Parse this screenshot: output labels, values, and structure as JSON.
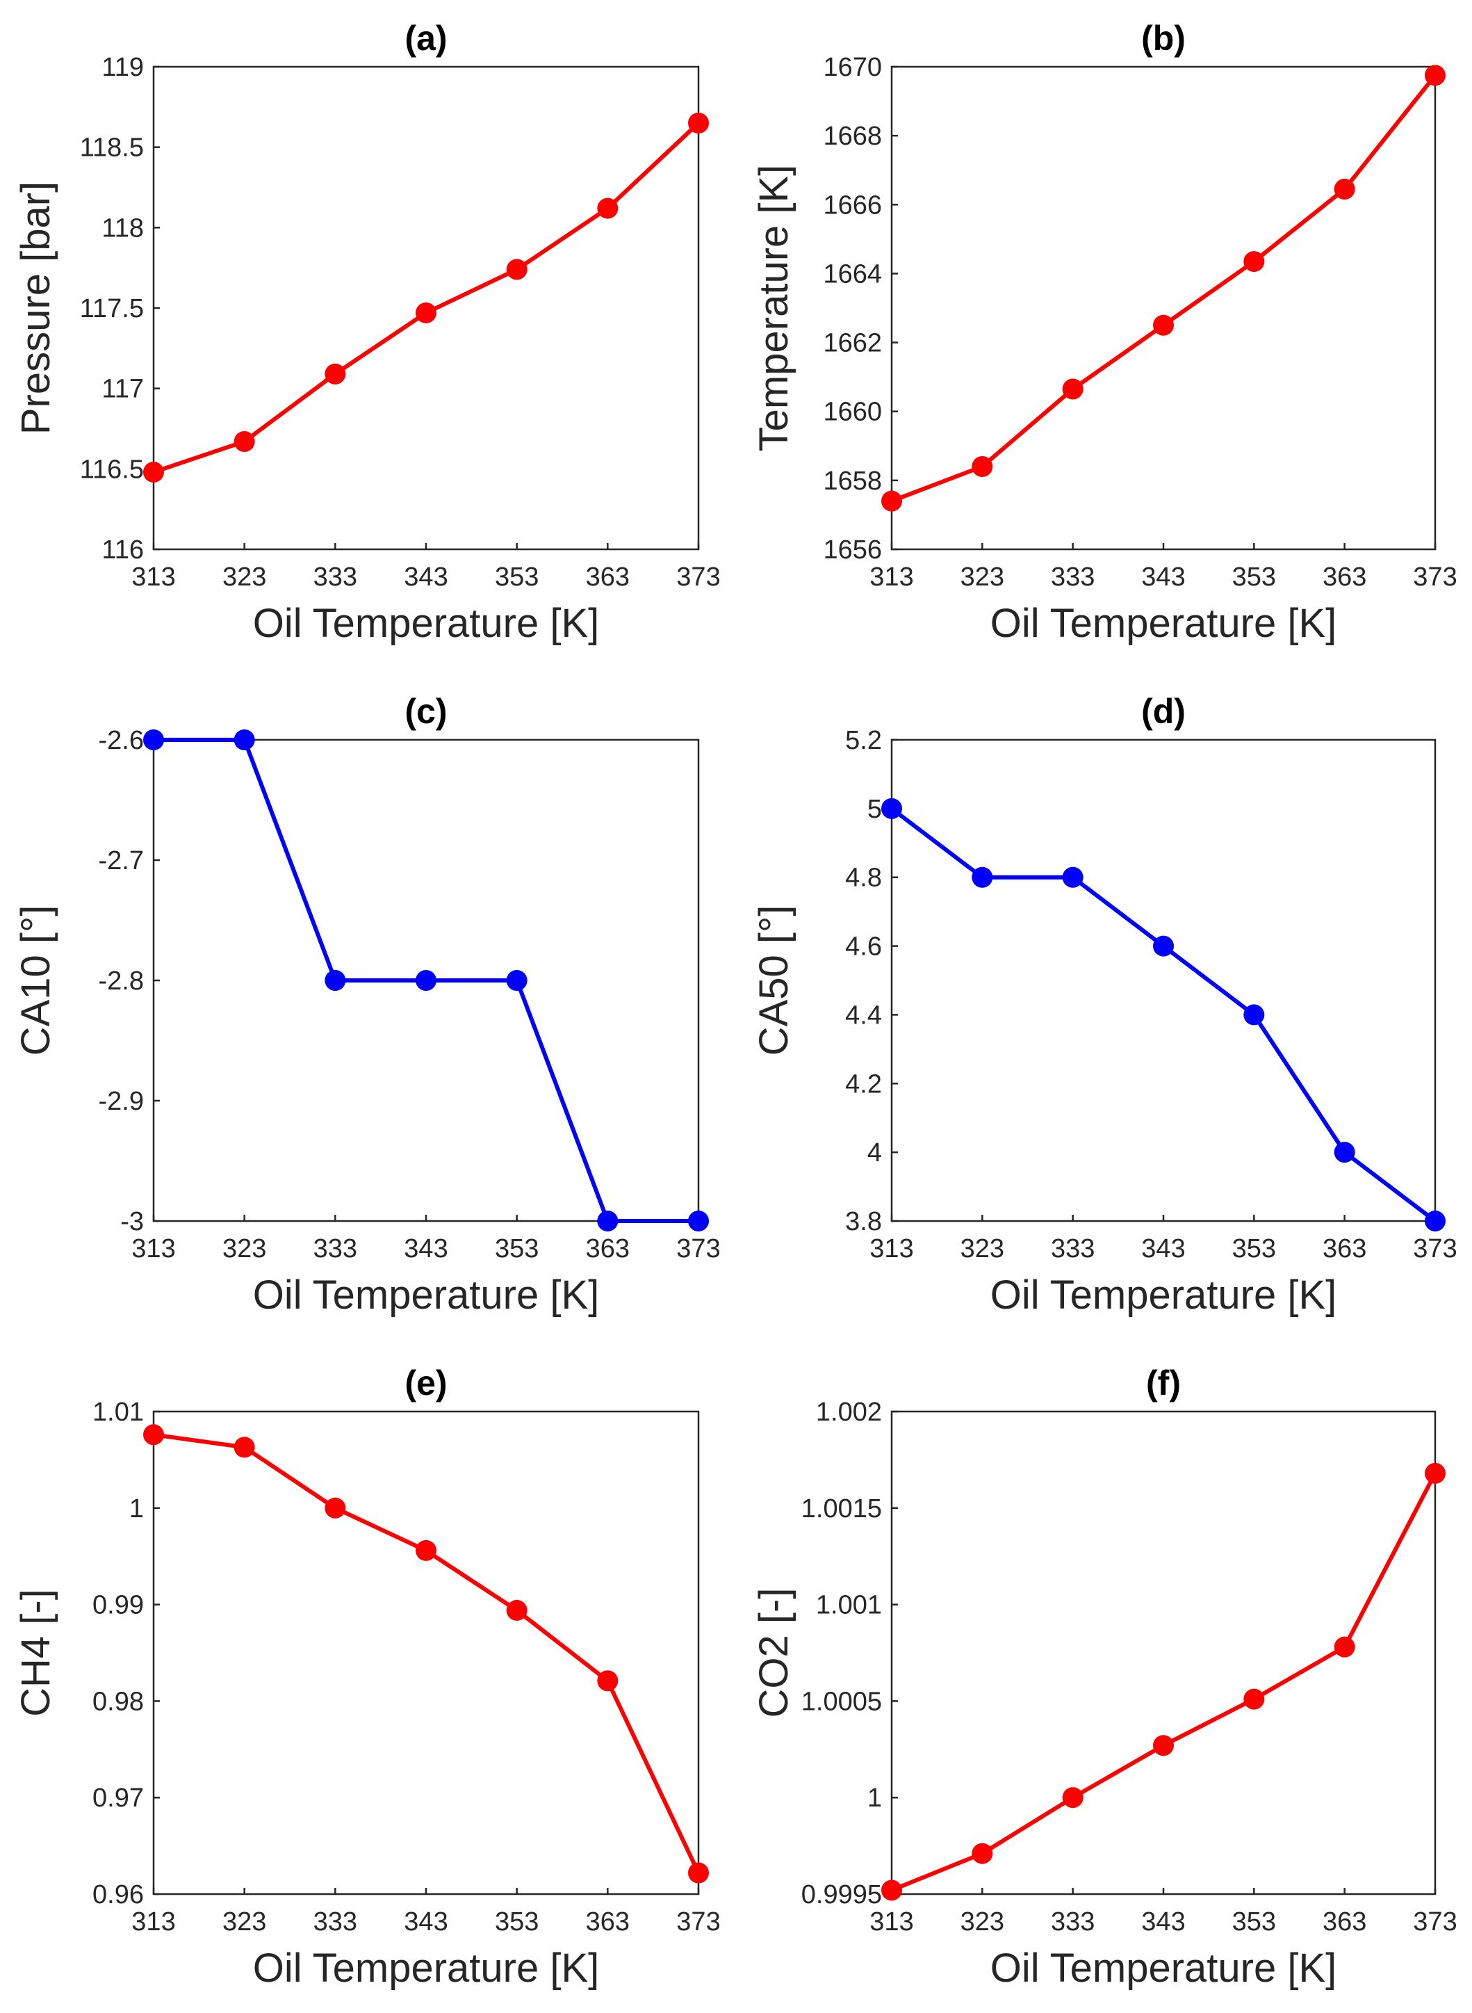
{
  "chart_data": [
    {
      "type": "line",
      "title": "(a)",
      "xlabel": "Oil Temperature [K]",
      "ylabel": "Pressure [bar]",
      "x": [
        313,
        323,
        333,
        343,
        353,
        363,
        373
      ],
      "values": [
        116.48,
        116.67,
        117.09,
        117.47,
        117.74,
        118.12,
        118.65
      ],
      "xlim": [
        313,
        373
      ],
      "ylim": [
        116,
        119
      ],
      "xticks": [
        313,
        323,
        333,
        343,
        353,
        363,
        373
      ],
      "xtick_labels": [
        "313",
        "323",
        "333",
        "343",
        "353",
        "363",
        "373"
      ],
      "yticks": [
        116,
        116.5,
        117,
        117.5,
        118,
        118.5,
        119
      ],
      "ytick_labels": [
        "116",
        "116.5",
        "117",
        "117.5",
        "118",
        "118.5",
        "119"
      ],
      "color": "#ff0000",
      "grid": true
    },
    {
      "type": "line",
      "title": "(b)",
      "xlabel": "Oil Temperature [K]",
      "ylabel": "Temperature [K]",
      "x": [
        313,
        323,
        333,
        343,
        353,
        363,
        373
      ],
      "values": [
        1657.4,
        1658.4,
        1660.65,
        1662.5,
        1664.35,
        1666.45,
        1669.75
      ],
      "xlim": [
        313,
        373
      ],
      "ylim": [
        1656,
        1670
      ],
      "xticks": [
        313,
        323,
        333,
        343,
        353,
        363,
        373
      ],
      "xtick_labels": [
        "313",
        "323",
        "333",
        "343",
        "353",
        "363",
        "373"
      ],
      "yticks": [
        1656,
        1658,
        1660,
        1662,
        1664,
        1666,
        1668,
        1670
      ],
      "ytick_labels": [
        "1656",
        "1658",
        "1660",
        "1662",
        "1664",
        "1666",
        "1668",
        "1670"
      ],
      "color": "#ff0000",
      "grid": true
    },
    {
      "type": "line",
      "title": "(c)",
      "xlabel": "Oil Temperature [K]",
      "ylabel": "CA10 [°]",
      "x": [
        313,
        323,
        333,
        343,
        353,
        363,
        373
      ],
      "values": [
        -2.6,
        -2.6,
        -2.8,
        -2.8,
        -2.8,
        -3.0,
        -3.0
      ],
      "xlim": [
        313,
        373
      ],
      "ylim": [
        -3.0,
        -2.6
      ],
      "xticks": [
        313,
        323,
        333,
        343,
        353,
        363,
        373
      ],
      "xtick_labels": [
        "313",
        "323",
        "333",
        "343",
        "353",
        "363",
        "373"
      ],
      "yticks": [
        -3.0,
        -2.9,
        -2.8,
        -2.7,
        -2.6
      ],
      "ytick_labels": [
        "-3",
        "-2.9",
        "-2.8",
        "-2.7",
        "-2.6"
      ],
      "color": "#0000ff",
      "grid": true
    },
    {
      "type": "line",
      "title": "(d)",
      "xlabel": "Oil Temperature [K]",
      "ylabel": "CA50 [°]",
      "x": [
        313,
        323,
        333,
        343,
        353,
        363,
        373
      ],
      "values": [
        5.0,
        4.8,
        4.8,
        4.6,
        4.4,
        4.0,
        3.8
      ],
      "xlim": [
        313,
        373
      ],
      "ylim": [
        3.8,
        5.2
      ],
      "xticks": [
        313,
        323,
        333,
        343,
        353,
        363,
        373
      ],
      "xtick_labels": [
        "313",
        "323",
        "333",
        "343",
        "353",
        "363",
        "373"
      ],
      "yticks": [
        3.8,
        4.0,
        4.2,
        4.4,
        4.6,
        4.8,
        5.0,
        5.2
      ],
      "ytick_labels": [
        "3.8",
        "4",
        "4.2",
        "4.4",
        "4.6",
        "4.8",
        "5",
        "5.2"
      ],
      "color": "#0000ff",
      "grid": true
    },
    {
      "type": "line",
      "title": "(e)",
      "xlabel": "Oil Temperature [K]",
      "ylabel": "CH4 [-]",
      "x": [
        313,
        323,
        333,
        343,
        353,
        363,
        373
      ],
      "values": [
        1.0076,
        1.0063,
        1.0,
        0.9956,
        0.9894,
        0.9821,
        0.9622
      ],
      "xlim": [
        313,
        373
      ],
      "ylim": [
        0.96,
        1.01
      ],
      "xticks": [
        313,
        323,
        333,
        343,
        353,
        363,
        373
      ],
      "xtick_labels": [
        "313",
        "323",
        "333",
        "343",
        "353",
        "363",
        "373"
      ],
      "yticks": [
        0.96,
        0.97,
        0.98,
        0.99,
        1.0,
        1.01
      ],
      "ytick_labels": [
        "0.96",
        "0.97",
        "0.98",
        "0.99",
        "1",
        "1.01"
      ],
      "color": "#ff0000",
      "grid": true
    },
    {
      "type": "line",
      "title": "(f)",
      "xlabel": "Oil Temperature [K]",
      "ylabel": "CO2 [-]",
      "x": [
        313,
        323,
        333,
        343,
        353,
        363,
        373
      ],
      "values": [
        0.99952,
        0.99971,
        1.0,
        1.00027,
        1.00051,
        1.00078,
        1.00168
      ],
      "xlim": [
        313,
        373
      ],
      "ylim": [
        0.9995,
        1.002
      ],
      "xticks": [
        313,
        323,
        333,
        343,
        353,
        363,
        373
      ],
      "xtick_labels": [
        "313",
        "323",
        "333",
        "343",
        "353",
        "363",
        "373"
      ],
      "yticks": [
        0.9995,
        1.0,
        1.0005,
        1.001,
        1.0015,
        1.002
      ],
      "ytick_labels": [
        "0.9995",
        "1",
        "1.0005",
        "1.001",
        "1.0015",
        "1.002"
      ],
      "color": "#ff0000",
      "grid": true
    }
  ]
}
